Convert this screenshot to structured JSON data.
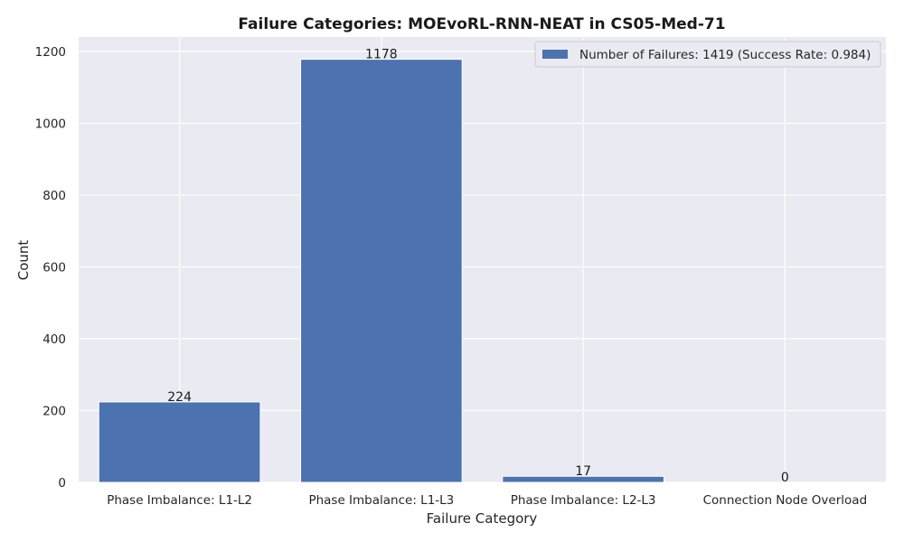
{
  "chart_data": {
    "type": "bar",
    "title": "Failure Categories: MOEvoRL-RNN-NEAT in CS05-Med-71",
    "xlabel": "Failure Category",
    "ylabel": "Count",
    "categories": [
      "Phase Imbalance: L1-L2",
      "Phase Imbalance: L1-L3",
      "Phase Imbalance: L2-L3",
      "Connection Node Overload"
    ],
    "series": [
      {
        "name": "Number of Failures: 1419 (Success Rate: 0.984)",
        "values": [
          224,
          1178,
          17,
          0
        ]
      }
    ],
    "data_labels": [
      "224",
      "1178",
      "17",
      "0"
    ],
    "ylim": [
      0,
      1240
    ],
    "yticks": [
      0,
      200,
      400,
      600,
      800,
      1000,
      1200
    ],
    "grid": true,
    "legend_position": "top-right",
    "colors": {
      "bar": "#4c72b0",
      "plot_background": "#eaeaf2",
      "grid": "#ffffff"
    }
  }
}
